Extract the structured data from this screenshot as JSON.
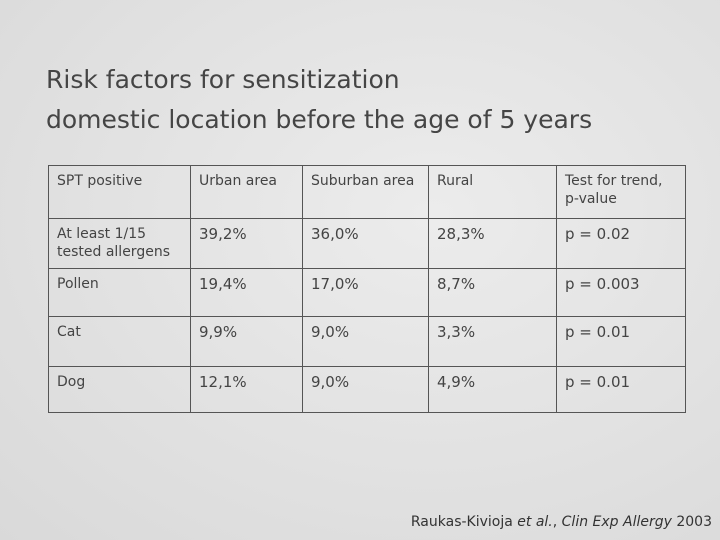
{
  "title": [
    "Risk factors for sensitization",
    "domestic location before the age of 5 years"
  ],
  "table": {
    "header": [
      "SPT positive",
      "Urban area",
      "Suburban area",
      "Rural",
      "Test for trend, p-value"
    ],
    "rows": [
      [
        "At least 1/15 tested allergens",
        "39,2%",
        "36,0%",
        "28,3%",
        "p = 0.02"
      ],
      [
        "Pollen",
        "19,4%",
        "17,0%",
        "8,7%",
        "p = 0.003"
      ],
      [
        "Cat",
        "9,9%",
        "9,0%",
        "3,3%",
        "p = 0.01"
      ],
      [
        "Dog",
        "12,1%",
        "9,0%",
        "4,9%",
        "p = 0.01"
      ]
    ]
  },
  "citation": [
    "Raukas-Kivioja ",
    "et al.",
    ", ",
    "Clin Exp Allergy",
    " 2003"
  ]
}
